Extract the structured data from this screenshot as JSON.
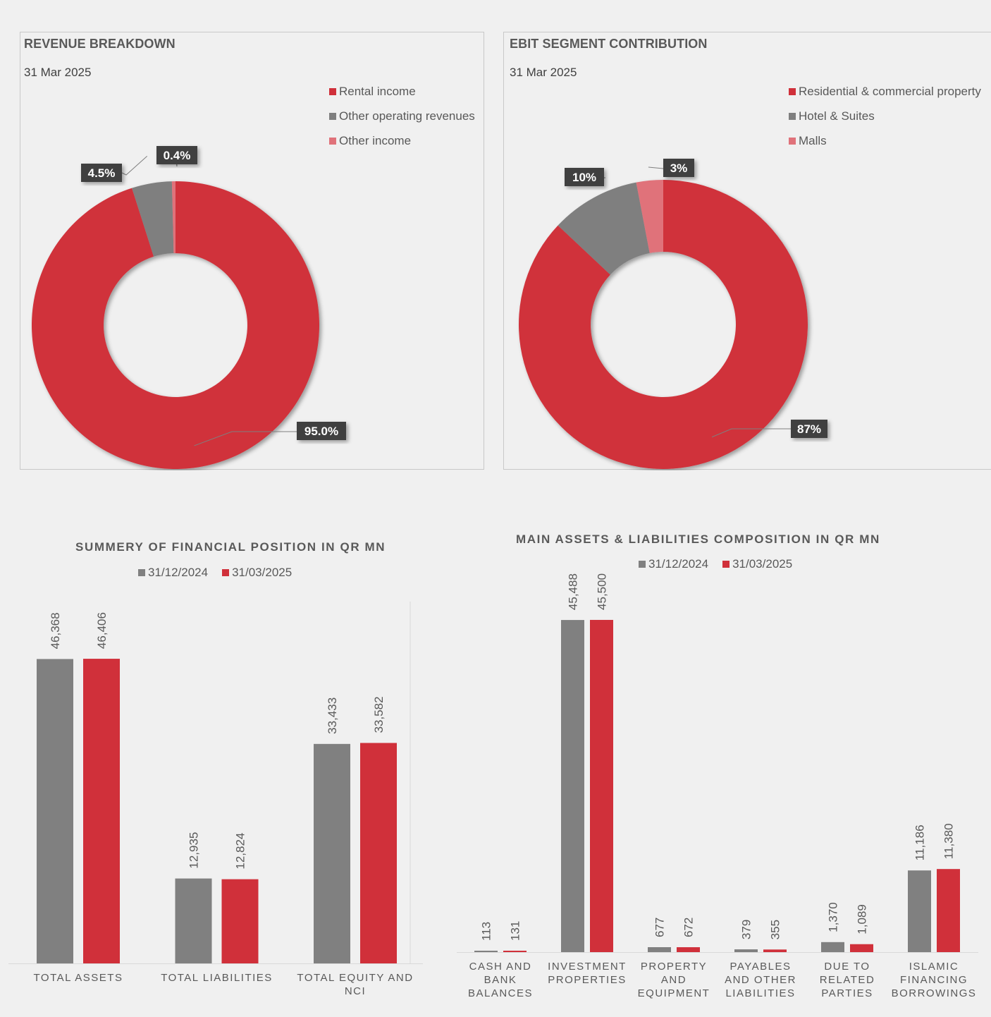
{
  "chart_data": [
    {
      "type": "pie",
      "variant": "donut",
      "title": "REVENUE BREAKDOWN",
      "subtitle": "31 Mar 2025",
      "legend_position": "top-right",
      "slices": [
        {
          "name": "Rental income",
          "value": 95.0,
          "label": "95.0%",
          "color": "#d0303a"
        },
        {
          "name": "Other operating revenues",
          "value": 4.5,
          "label": "4.5%",
          "color": "#7f7f7f"
        },
        {
          "name": "Other income",
          "value": 0.4,
          "label": "0.4%",
          "color": "#e0727a"
        }
      ]
    },
    {
      "type": "pie",
      "variant": "donut",
      "title": "EBIT SEGMENT CONTRIBUTION",
      "subtitle": "31 Mar 2025",
      "legend_position": "top-right",
      "slices": [
        {
          "name": "Residential & commercial property",
          "value": 87,
          "label": "87%",
          "color": "#d0303a"
        },
        {
          "name": "Hotel & Suites",
          "value": 10,
          "label": "10%",
          "color": "#7f7f7f"
        },
        {
          "name": "Malls",
          "value": 3,
          "label": "3%",
          "color": "#e0727a"
        }
      ]
    },
    {
      "type": "bar",
      "title": "SUMMERY OF FINANCIAL POSITION IN QR MN",
      "legend_position": "top",
      "categories": [
        "TOTAL ASSETS",
        "TOTAL LIABILITIES",
        "TOTAL EQUITY AND NCI"
      ],
      "series": [
        {
          "name": "31/12/2024",
          "color": "#808080",
          "values": [
            46368,
            12935,
            33433
          ],
          "labels": [
            "46,368",
            "12,935",
            "33,433"
          ]
        },
        {
          "name": "31/03/2025",
          "color": "#d0303a",
          "values": [
            46406,
            12824,
            33582
          ],
          "labels": [
            "46,406",
            "12,824",
            "33,582"
          ]
        }
      ],
      "ylim": [
        0,
        52000
      ],
      "grid": false
    },
    {
      "type": "bar",
      "title": "MAIN ASSETS & LIABILITIES COMPOSITION IN QR MN",
      "legend_position": "top",
      "categories": [
        "CASH AND BANK BALANCES",
        "INVESTMENT PROPERTIES",
        "PROPERTY AND EQUIPMENT",
        "PAYABLES AND OTHER LIABILITIES",
        "DUE TO RELATED PARTIES",
        "ISLAMIC FINANCING BORROWINGS"
      ],
      "category_lines": [
        [
          "CASH AND",
          "BANK",
          "BALANCES"
        ],
        [
          "INVESTMENT",
          "PROPERTIES"
        ],
        [
          "PROPERTY",
          "AND",
          "EQUIPMENT"
        ],
        [
          "PAYABLES",
          "AND OTHER",
          "LIABILITIES"
        ],
        [
          "DUE TO",
          "RELATED",
          "PARTIES"
        ],
        [
          "ISLAMIC",
          "FINANCING",
          "BORROWINGS"
        ]
      ],
      "series": [
        {
          "name": "31/12/2024",
          "color": "#808080",
          "values": [
            113,
            45488,
            677,
            379,
            1370,
            11186
          ],
          "labels": [
            "113",
            "45,488",
            "677",
            "379",
            "1,370",
            "11,186"
          ]
        },
        {
          "name": "31/03/2025",
          "color": "#d0303a",
          "values": [
            131,
            45500,
            672,
            355,
            1089,
            11380
          ],
          "labels": [
            "131",
            "45,500",
            "672",
            "355",
            "1,089",
            "11,380"
          ]
        }
      ],
      "ylim": [
        0,
        50000
      ],
      "grid": false
    }
  ]
}
